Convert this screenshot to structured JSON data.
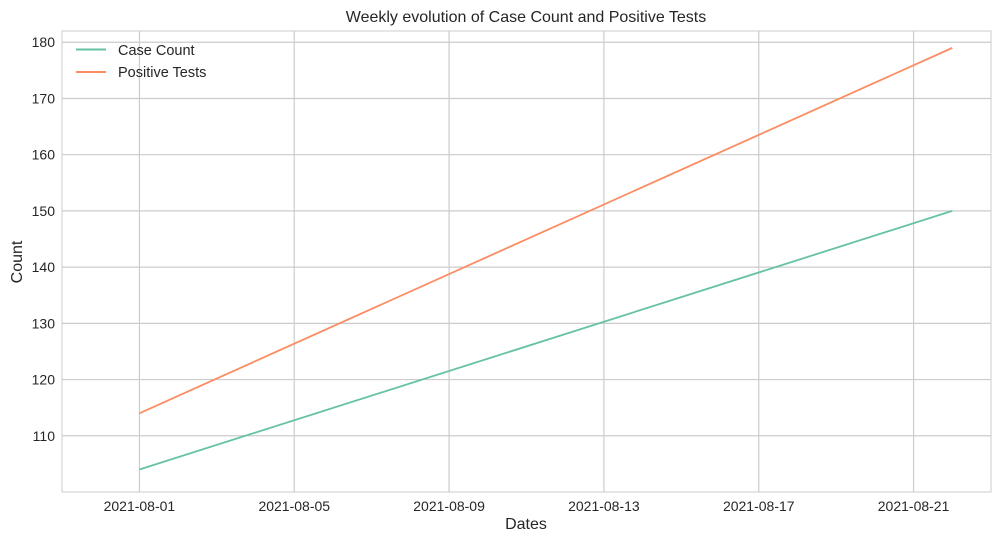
{
  "chart_data": {
    "type": "line",
    "title": "Weekly evolution of Case Count and Positive Tests",
    "xlabel": "Dates",
    "ylabel": "Count",
    "x_type": "date",
    "xlim": [
      "2021-07-30",
      "2021-08-23"
    ],
    "ylim": [
      100,
      182
    ],
    "x_ticks": [
      "2021-08-01",
      "2021-08-05",
      "2021-08-09",
      "2021-08-13",
      "2021-08-17",
      "2021-08-21"
    ],
    "y_ticks": [
      110,
      120,
      130,
      140,
      150,
      160,
      170,
      180
    ],
    "grid": true,
    "legend_position": "top-left",
    "series": [
      {
        "name": "Case Count",
        "color": "#66c2a5",
        "x": [
          "2021-08-01",
          "2021-08-22"
        ],
        "values": [
          104,
          150
        ]
      },
      {
        "name": "Positive Tests",
        "color": "#fc8d62",
        "x": [
          "2021-08-01",
          "2021-08-22"
        ],
        "values": [
          114,
          179
        ]
      }
    ]
  }
}
